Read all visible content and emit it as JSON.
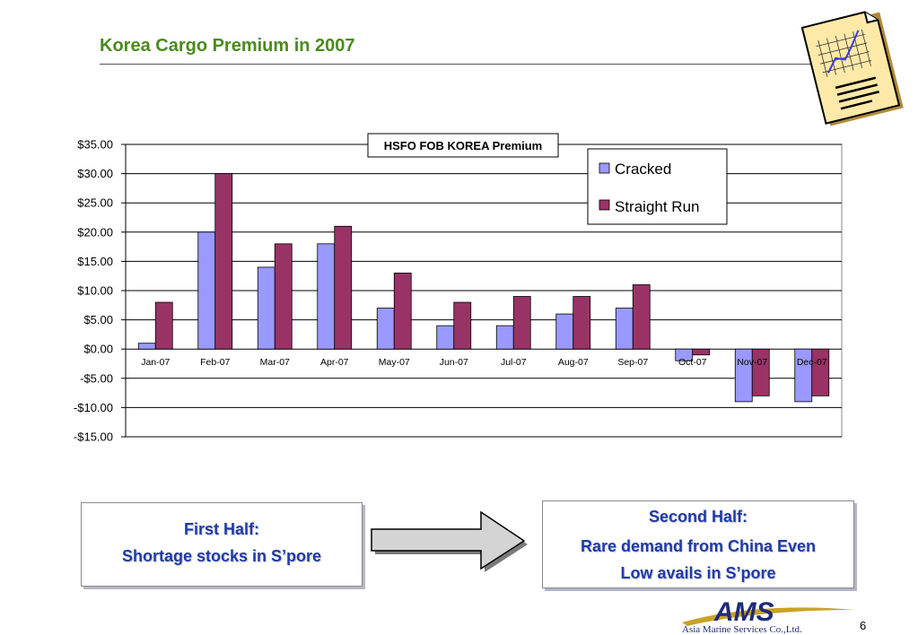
{
  "slide": {
    "title": "Korea Cargo Premium in 2007",
    "page_number": "6"
  },
  "icons": {
    "document": "chart-document-icon",
    "arrow": "right-arrow-icon"
  },
  "colors": {
    "title": "#4b8a1e",
    "cracked": "#9999ff",
    "straight_run": "#993366",
    "callout_text": "#1f3aa8"
  },
  "chart_data": {
    "type": "bar",
    "title": "HSFO FOB KOREA Premium",
    "xlabel": "",
    "ylabel": "",
    "categories": [
      "Jan-07",
      "Feb-07",
      "Mar-07",
      "Apr-07",
      "May-07",
      "Jun-07",
      "Jul-07",
      "Aug-07",
      "Sep-07",
      "Oct-07",
      "Nov-07",
      "Dec-07"
    ],
    "series": [
      {
        "name": "Cracked",
        "color": "#9999ff",
        "values": [
          1,
          20,
          14,
          18,
          7,
          4,
          4,
          6,
          7,
          -2,
          -9,
          -9
        ]
      },
      {
        "name": "Straight Run",
        "color": "#993366",
        "values": [
          8,
          30,
          18,
          21,
          13,
          8,
          9,
          9,
          11,
          -1,
          -8,
          -8
        ]
      }
    ],
    "ylim": [
      -15,
      35
    ],
    "yticks": [
      35,
      30,
      25,
      20,
      15,
      10,
      5,
      0,
      -5,
      -10,
      -15
    ],
    "ytick_labels": [
      "$35.00",
      "$30.00",
      "$25.00",
      "$20.00",
      "$15.00",
      "$10.00",
      "$5.00",
      "$0.00",
      "-$5.00",
      "-$10.00",
      "-$15.00"
    ],
    "grid": true,
    "legend_position": "top-right"
  },
  "callouts": {
    "first_half": {
      "heading": "First Half:",
      "text": "Shortage stocks in S’pore"
    },
    "second_half": {
      "heading": "Second Half:",
      "line1": "Rare demand from China Even",
      "line2": "Low avails in S’pore"
    }
  },
  "logo": {
    "text": "AMS",
    "caption": "Asia Marine Services Co.,Ltd."
  }
}
